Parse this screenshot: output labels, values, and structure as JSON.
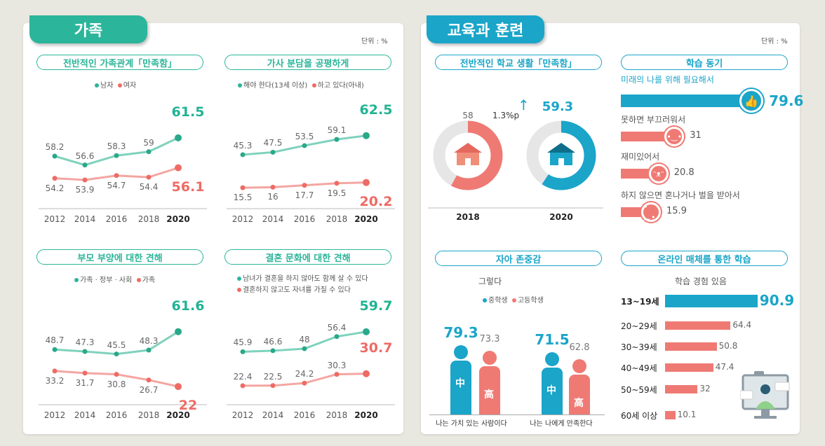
{
  "family": {
    "tab": "가족",
    "unit": "단위 : %",
    "colors": {
      "teal": "#2bb59a",
      "red": "#ee6b65"
    },
    "charts": [
      {
        "title": "전반적인 가족관계「만족함」",
        "type": "line",
        "categories": [
          "2012",
          "2014",
          "2016",
          "2018",
          "2020"
        ],
        "series": [
          {
            "name": "남자",
            "values": [
              58.2,
              56.6,
              58.3,
              59.0,
              61.5
            ]
          },
          {
            "name": "여자",
            "values": [
              54.2,
              53.9,
              54.7,
              54.4,
              56.1
            ]
          }
        ]
      },
      {
        "title": "가사 분담을 공평하게",
        "type": "line",
        "categories": [
          "2012",
          "2014",
          "2016",
          "2018",
          "2020"
        ],
        "series": [
          {
            "name": "해야 한다(13세 이상)",
            "values": [
              45.3,
              47.5,
              53.5,
              59.1,
              62.5
            ]
          },
          {
            "name": "하고 있다(아내)",
            "values": [
              15.5,
              16.0,
              17.7,
              19.5,
              20.2
            ]
          }
        ]
      },
      {
        "title": "부모 부양에 대한 견해",
        "type": "line",
        "categories": [
          "2012",
          "2014",
          "2016",
          "2018",
          "2020"
        ],
        "series": [
          {
            "name": "가족 · 정부 · 사회",
            "values": [
              48.7,
              47.3,
              45.5,
              48.3,
              61.6
            ]
          },
          {
            "name": "가족",
            "values": [
              33.2,
              31.7,
              30.8,
              26.7,
              22.0
            ]
          }
        ]
      },
      {
        "title": "결혼 문화에 대한 견해",
        "type": "line",
        "categories": [
          "2012",
          "2014",
          "2016",
          "2018",
          "2020"
        ],
        "series": [
          {
            "name": "남녀가 결혼을 하지 않아도 함께 살 수 있다",
            "values": [
              45.9,
              46.6,
              48.0,
              56.4,
              59.7
            ]
          },
          {
            "name": "결혼하지 않고도 자녀를 가질 수 있다",
            "values": [
              22.4,
              22.5,
              24.2,
              30.3,
              30.7
            ]
          }
        ]
      }
    ]
  },
  "education": {
    "tab": "교육과 훈련",
    "unit": "단위 : %",
    "colors": {
      "blue": "#1aa5c9",
      "red": "#ef7a74"
    },
    "school": {
      "title": "전반적인 학교 생활「만족함」",
      "type": "pie",
      "categories": [
        "2018",
        "2020"
      ],
      "values": [
        58.0,
        59.3
      ],
      "change": "1.3%p"
    },
    "motivation": {
      "title": "학습 동기",
      "type": "bar",
      "items": [
        {
          "label": "미래의 나를 위해 필요해서",
          "value": 79.6
        },
        {
          "label": "못하면 부끄러워서",
          "value": 31.0
        },
        {
          "label": "재미있어서",
          "value": 20.8
        },
        {
          "label": "하지 않으면 혼나거나 벌을 받아서",
          "value": 15.9
        }
      ]
    },
    "self_esteem": {
      "title": "자아 존중감",
      "subtitle": "그렇다",
      "type": "bar",
      "legend": [
        "중학생",
        "고등학생"
      ],
      "marks": [
        "中",
        "高"
      ],
      "categories": [
        "나는 가치 있는 사람이다",
        "나는 나에게 만족한다"
      ],
      "series": [
        {
          "name": "중학생",
          "values": [
            79.3,
            71.5
          ]
        },
        {
          "name": "고등학생",
          "values": [
            73.3,
            62.8
          ]
        }
      ]
    },
    "online": {
      "title": "온라인 매체를 통한 학습",
      "subtitle": "학습 경험 있음",
      "type": "bar",
      "categories": [
        "13~19세",
        "20~29세",
        "30~39세",
        "40~49세",
        "50~59세",
        "60세 이상"
      ],
      "values": [
        90.9,
        64.4,
        50.8,
        47.4,
        32.0,
        10.1
      ]
    }
  }
}
